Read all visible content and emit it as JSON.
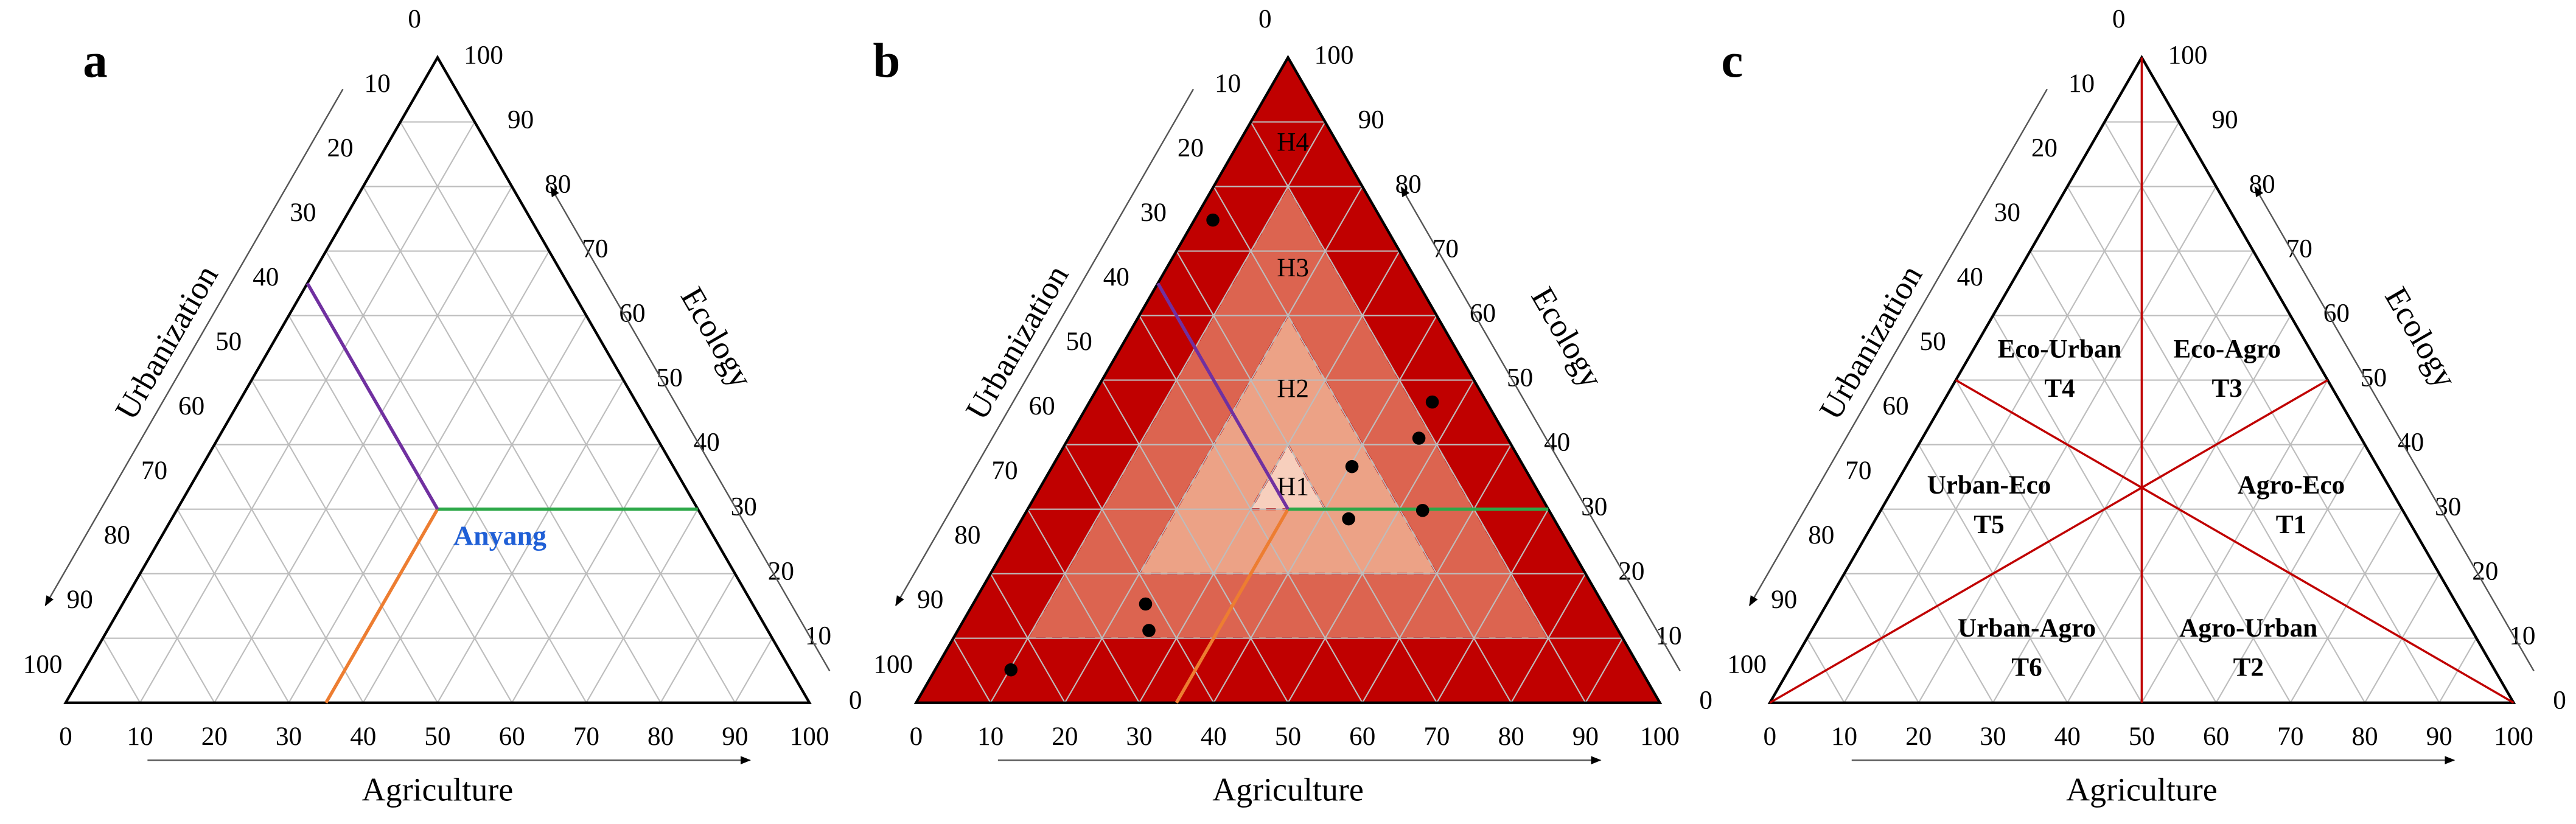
{
  "chart_data": [
    {
      "type": "ternary",
      "panel": "a",
      "axes": {
        "bottom": "Agriculture",
        "right": "Ecology",
        "left": "Urbanization"
      },
      "ticks": [
        0,
        10,
        20,
        30,
        40,
        50,
        60,
        70,
        80,
        90,
        100
      ],
      "grid": true,
      "point": {
        "label": "Anyang",
        "label_color": "#1f5fd6",
        "agriculture": 35,
        "ecology": 30,
        "urbanization": 35,
        "colors": {
          "agriculture": "#ed7d31",
          "ecology": "#2ca848",
          "urbanization": "#7030a0"
        }
      }
    },
    {
      "type": "ternary",
      "panel": "b",
      "axes": {
        "bottom": "Agriculture",
        "right": "Ecology",
        "left": "Urbanization"
      },
      "ticks": [
        0,
        10,
        20,
        30,
        40,
        50,
        60,
        70,
        80,
        90,
        100
      ],
      "grid": true,
      "regions": [
        {
          "name": "H4",
          "min": 0,
          "color": "#c00000"
        },
        {
          "name": "H3",
          "min": 10,
          "color": "#dc6450"
        },
        {
          "name": "H2",
          "min": 20,
          "color": "#eca286"
        },
        {
          "name": "H1",
          "min": 30,
          "color": "#f7cfbd"
        }
      ],
      "point": {
        "agriculture": 35,
        "ecology": 30,
        "urbanization": 35,
        "colors": {
          "agriculture": "#ed7d31",
          "ecology": "#2ca848",
          "urbanization": "#7030a0"
        }
      },
      "points": {
        "color": "#000000",
        "agriculture": [
          2.5,
          46.1,
          47.1,
          40.3,
          43.9,
          53.2,
          23.2,
          25.7,
          10.2
        ],
        "ecology": [
          74.8,
          46.6,
          41.0,
          36.6,
          28.5,
          29.8,
          15.3,
          11.2,
          5.1
        ],
        "urbanization": [
          22.7,
          7.3,
          11.9,
          23.1,
          27.6,
          17.0,
          61.5,
          63.1,
          84.7
        ]
      }
    },
    {
      "type": "ternary",
      "panel": "c",
      "axes": {
        "bottom": "Agriculture",
        "right": "Ecology",
        "left": "Urbanization"
      },
      "ticks": [
        0,
        10,
        20,
        30,
        40,
        50,
        60,
        70,
        80,
        90,
        100
      ],
      "grid": true,
      "line_color": "#c00000",
      "regions": [
        {
          "name": "Eco-Urban",
          "code": "T4"
        },
        {
          "name": "Eco-Agro",
          "code": "T3"
        },
        {
          "name": "Urban-Eco",
          "code": "T5"
        },
        {
          "name": "Agro-Eco",
          "code": "T1"
        },
        {
          "name": "Urban-Agro",
          "code": "T6"
        },
        {
          "name": "Agro-Urban",
          "code": "T2"
        }
      ]
    }
  ]
}
